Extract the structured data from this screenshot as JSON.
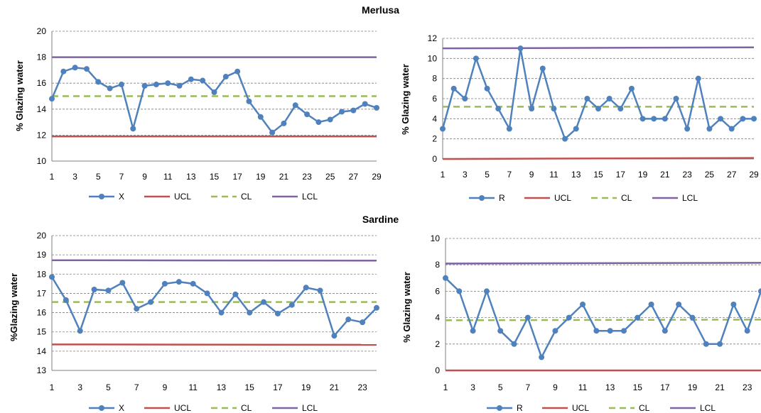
{
  "sections": [
    {
      "title": "Merlusa"
    },
    {
      "title": "Sardine"
    }
  ],
  "colors": {
    "data": "#4f81bd",
    "ucl": "#c0504d",
    "cl": "#9bbb59",
    "lcl": "#8064a2",
    "grid": "#7f7f7f",
    "axis": "#7f7f7f"
  },
  "chart_data": [
    {
      "type": "line",
      "section": "Merlusa",
      "ylabel": "% Glazing water",
      "ylim": [
        10,
        20
      ],
      "yticks": [
        10,
        12,
        14,
        16,
        18,
        20
      ],
      "xlim": [
        1,
        29
      ],
      "xticks": [
        1,
        3,
        5,
        7,
        9,
        11,
        13,
        15,
        17,
        19,
        21,
        23,
        25,
        27,
        29
      ],
      "grid": true,
      "legend": "bottom",
      "series": [
        {
          "name": "X",
          "style": "line-markers",
          "x": [
            1,
            2,
            3,
            4,
            5,
            6,
            7,
            8,
            9,
            10,
            11,
            12,
            13,
            14,
            15,
            16,
            17,
            18,
            19,
            20,
            21,
            22,
            23,
            24,
            25,
            26,
            27,
            28,
            29
          ],
          "values": [
            14.8,
            16.9,
            17.2,
            17.1,
            16.1,
            15.6,
            15.9,
            12.5,
            15.8,
            15.9,
            16.0,
            15.8,
            16.3,
            16.2,
            15.3,
            16.5,
            16.9,
            14.6,
            13.4,
            12.2,
            12.9,
            14.3,
            13.6,
            13.0,
            13.2,
            13.8,
            13.9,
            14.4,
            14.1
          ]
        },
        {
          "name": "UCL",
          "style": "solid",
          "x": [
            1,
            29
          ],
          "values": [
            11.9,
            11.9
          ]
        },
        {
          "name": "CL",
          "style": "dashed",
          "x": [
            1,
            29
          ],
          "values": [
            15.0,
            15.0
          ]
        },
        {
          "name": "LCL",
          "style": "solid",
          "x": [
            1,
            29
          ],
          "values": [
            18.0,
            18.0
          ]
        }
      ]
    },
    {
      "type": "line",
      "section": "Merlusa",
      "ylabel": "% Glazing water",
      "ylim": [
        0,
        12
      ],
      "yticks": [
        0,
        2,
        4,
        6,
        8,
        10,
        12
      ],
      "xlim": [
        1,
        29
      ],
      "xticks": [
        1,
        3,
        5,
        7,
        9,
        11,
        13,
        15,
        17,
        19,
        21,
        23,
        25,
        27,
        29
      ],
      "grid": true,
      "legend": "bottom",
      "series": [
        {
          "name": "R",
          "style": "line-markers",
          "x": [
            1,
            2,
            3,
            4,
            5,
            6,
            7,
            8,
            9,
            10,
            11,
            12,
            13,
            14,
            15,
            16,
            17,
            18,
            19,
            20,
            21,
            22,
            23,
            24,
            25,
            26,
            27,
            28,
            29
          ],
          "values": [
            3,
            7,
            6,
            10,
            7,
            5,
            3,
            11,
            5,
            9,
            5,
            2,
            3,
            6,
            5,
            6,
            5,
            7,
            4,
            4,
            4,
            6,
            3,
            8,
            3,
            4,
            3,
            4,
            4
          ]
        },
        {
          "name": "UCL",
          "style": "solid",
          "x": [
            1,
            29
          ],
          "values": [
            0,
            0.1
          ]
        },
        {
          "name": "CL",
          "style": "dashed",
          "x": [
            1,
            29
          ],
          "values": [
            5.2,
            5.2
          ]
        },
        {
          "name": "LCL",
          "style": "solid",
          "x": [
            1,
            29
          ],
          "values": [
            11.0,
            11.1
          ]
        }
      ]
    },
    {
      "type": "line",
      "section": "Sardine",
      "ylabel": "%Glazing water",
      "ylim": [
        13,
        20
      ],
      "yticks": [
        13,
        14,
        15,
        16,
        17,
        18,
        19,
        20
      ],
      "xlim": [
        1,
        24
      ],
      "xticks": [
        1,
        3,
        5,
        7,
        9,
        11,
        13,
        15,
        17,
        19,
        21,
        23
      ],
      "grid": true,
      "legend": "bottom",
      "series": [
        {
          "name": "X",
          "style": "line-markers",
          "x": [
            1,
            2,
            3,
            4,
            5,
            6,
            7,
            8,
            9,
            10,
            11,
            12,
            13,
            14,
            15,
            16,
            17,
            18,
            19,
            20,
            21,
            22,
            23,
            24
          ],
          "values": [
            17.85,
            16.65,
            15.05,
            17.2,
            17.15,
            17.55,
            16.2,
            16.55,
            17.5,
            17.6,
            17.5,
            17.0,
            16.0,
            16.95,
            16.0,
            16.55,
            15.95,
            16.4,
            17.3,
            17.15,
            14.8,
            15.65,
            15.5,
            16.25
          ]
        },
        {
          "name": "UCL",
          "style": "solid",
          "x": [
            1,
            24
          ],
          "values": [
            14.35,
            14.33
          ]
        },
        {
          "name": "CL",
          "style": "dashed",
          "x": [
            1,
            24
          ],
          "values": [
            16.55,
            16.55
          ]
        },
        {
          "name": "LCL",
          "style": "solid",
          "x": [
            1,
            24
          ],
          "values": [
            18.72,
            18.7
          ]
        }
      ]
    },
    {
      "type": "line",
      "section": "Sardine",
      "ylabel": "% Glazing water",
      "ylim": [
        0,
        10
      ],
      "yticks": [
        0,
        2,
        4,
        6,
        8,
        10
      ],
      "xlim": [
        1,
        24
      ],
      "xticks": [
        1,
        3,
        5,
        7,
        9,
        11,
        13,
        15,
        17,
        19,
        21,
        23
      ],
      "grid": true,
      "legend": "bottom",
      "series": [
        {
          "name": "R",
          "style": "line-markers",
          "x": [
            1,
            2,
            3,
            4,
            5,
            6,
            7,
            8,
            9,
            10,
            11,
            12,
            13,
            14,
            15,
            16,
            17,
            18,
            19,
            20,
            21,
            22,
            23,
            24
          ],
          "values": [
            7,
            6,
            3,
            6,
            3,
            2,
            4,
            1,
            3,
            4,
            5,
            3,
            3,
            3,
            4,
            5,
            3,
            5,
            4,
            2,
            2,
            5,
            3,
            6
          ]
        },
        {
          "name": "UCL",
          "style": "solid",
          "x": [
            1,
            24
          ],
          "values": [
            0,
            0
          ]
        },
        {
          "name": "CL",
          "style": "dashed",
          "x": [
            1,
            24
          ],
          "values": [
            3.8,
            3.85
          ]
        },
        {
          "name": "LCL",
          "style": "solid",
          "x": [
            1,
            24
          ],
          "values": [
            8.1,
            8.15
          ]
        }
      ]
    }
  ]
}
